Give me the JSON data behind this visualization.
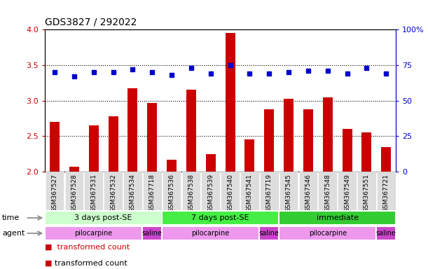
{
  "title": "GDS3827 / 292022",
  "samples": [
    "GSM367527",
    "GSM367528",
    "GSM367531",
    "GSM367532",
    "GSM367534",
    "GSM367718",
    "GSM367536",
    "GSM367538",
    "GSM367539",
    "GSM367540",
    "GSM367541",
    "GSM367719",
    "GSM367545",
    "GSM367546",
    "GSM367548",
    "GSM367549",
    "GSM367551",
    "GSM367721"
  ],
  "transformed_count": [
    2.7,
    2.07,
    2.65,
    2.78,
    3.17,
    2.97,
    2.17,
    3.15,
    2.25,
    3.95,
    2.45,
    2.88,
    3.03,
    2.88,
    3.05,
    2.6,
    2.55,
    2.35
  ],
  "percentile_rank": [
    70,
    67,
    70,
    70,
    72,
    70,
    68,
    73,
    69,
    75,
    69,
    69,
    70,
    71,
    71,
    69,
    73,
    69
  ],
  "bar_color": "#cc0000",
  "dot_color": "#0000cc",
  "ylim_left": [
    2.0,
    4.0
  ],
  "ylim_right": [
    0,
    100
  ],
  "yticks_left": [
    2.0,
    2.5,
    3.0,
    3.5,
    4.0
  ],
  "yticks_right": [
    0,
    25,
    50,
    75,
    100
  ],
  "hlines": [
    2.5,
    3.0,
    3.5
  ],
  "time_groups": [
    {
      "label": "3 days post-SE",
      "start": 0,
      "end": 6,
      "color": "#ccffcc"
    },
    {
      "label": "7 days post-SE",
      "start": 6,
      "end": 12,
      "color": "#44ee44"
    },
    {
      "label": "immediate",
      "start": 12,
      "end": 18,
      "color": "#33cc33"
    }
  ],
  "agent_groups": [
    {
      "label": "pilocarpine",
      "start": 0,
      "end": 5,
      "color": "#ee99ee"
    },
    {
      "label": "saline",
      "start": 5,
      "end": 6,
      "color": "#cc44cc"
    },
    {
      "label": "pilocarpine",
      "start": 6,
      "end": 11,
      "color": "#ee99ee"
    },
    {
      "label": "saline",
      "start": 11,
      "end": 12,
      "color": "#cc44cc"
    },
    {
      "label": "pilocarpine",
      "start": 12,
      "end": 17,
      "color": "#ee99ee"
    },
    {
      "label": "saline",
      "start": 17,
      "end": 18,
      "color": "#cc44cc"
    }
  ],
  "bg_color": "#ffffff",
  "tick_color_left": "#cc0000",
  "tick_color_right": "#0000cc",
  "xtick_bg": "#dddddd"
}
